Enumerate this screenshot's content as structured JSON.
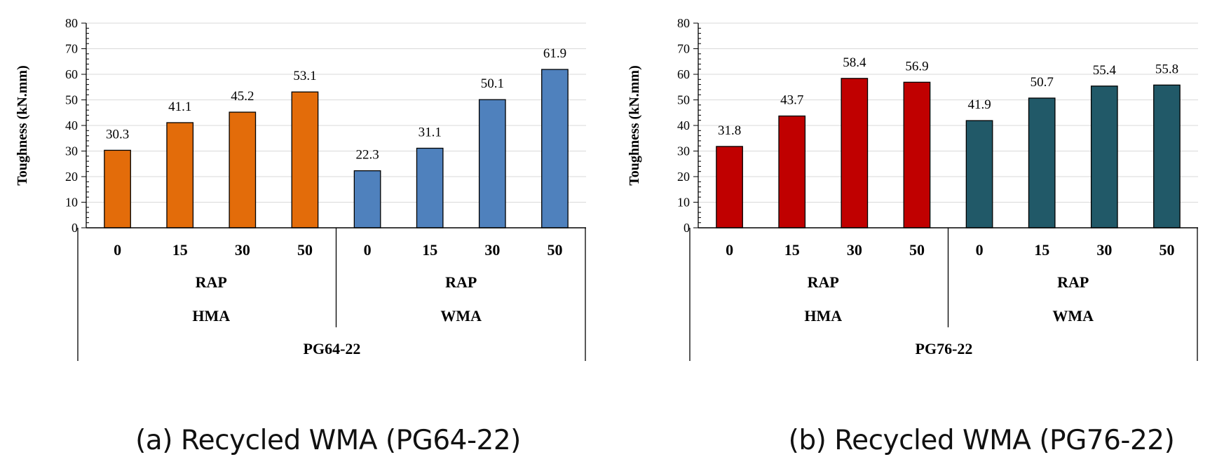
{
  "chart_data": [
    {
      "type": "bar",
      "panel": "a",
      "caption": "(a) Recycled WMA (PG64-22)",
      "ylabel": "Toughness (kN.mm)",
      "ylim": [
        0,
        80
      ],
      "yticks": [
        "0",
        "10",
        "20",
        "30",
        "40",
        "50",
        "60",
        "70",
        "80"
      ],
      "grid": true,
      "binder": "PG64-22",
      "groups": [
        {
          "mix": "HMA",
          "rap_label": "RAP",
          "categories": [
            "0",
            "15",
            "30",
            "50"
          ],
          "values": [
            30.3,
            41.1,
            45.2,
            53.1
          ],
          "labels": [
            "30.3",
            "41.1",
            "45.2",
            "53.1"
          ],
          "color": "#E36C0A"
        },
        {
          "mix": "WMA",
          "rap_label": "RAP",
          "categories": [
            "0",
            "15",
            "30",
            "50"
          ],
          "values": [
            22.3,
            31.1,
            50.1,
            61.9
          ],
          "labels": [
            "22.3",
            "31.1",
            "50.1",
            "61.9"
          ],
          "color": "#4F81BD"
        }
      ]
    },
    {
      "type": "bar",
      "panel": "b",
      "caption": "(b) Recycled WMA (PG76-22)",
      "ylabel": "Toughness (kN.mm)",
      "ylim": [
        0,
        80
      ],
      "yticks": [
        "0",
        "10",
        "20",
        "30",
        "40",
        "50",
        "60",
        "70",
        "80"
      ],
      "grid": true,
      "binder": "PG76-22",
      "groups": [
        {
          "mix": "HMA",
          "rap_label": "RAP",
          "categories": [
            "0",
            "15",
            "30",
            "50"
          ],
          "values": [
            31.8,
            43.7,
            58.4,
            56.9
          ],
          "labels": [
            "31.8",
            "43.7",
            "58.4",
            "56.9"
          ],
          "color": "#C00000"
        },
        {
          "mix": "WMA",
          "rap_label": "RAP",
          "categories": [
            "0",
            "15",
            "30",
            "50"
          ],
          "values": [
            41.9,
            50.7,
            55.4,
            55.8
          ],
          "labels": [
            "41.9",
            "50.7",
            "55.4",
            "55.8"
          ],
          "color": "#215968"
        }
      ]
    }
  ]
}
